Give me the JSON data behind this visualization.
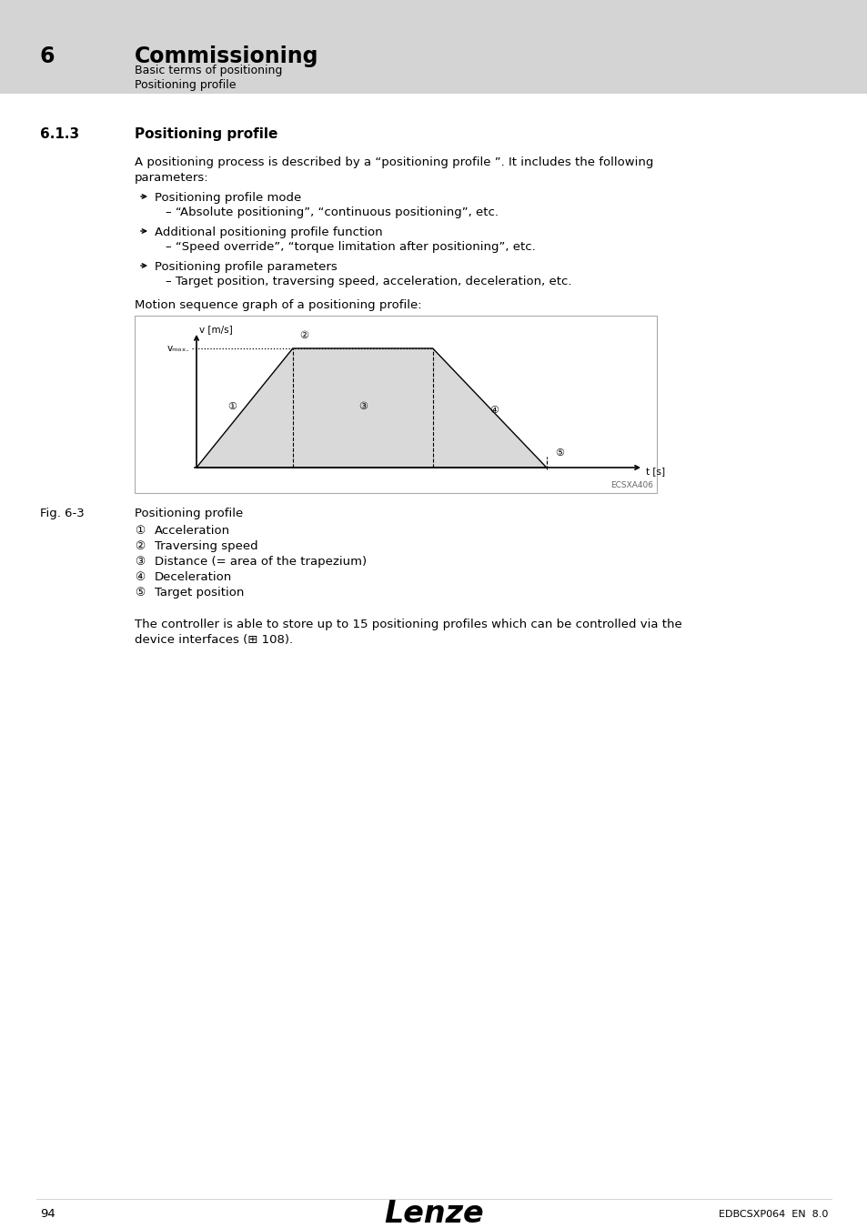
{
  "page_bg": "#ffffff",
  "header_bg": "#d4d4d4",
  "header_number": "6",
  "header_title": "Commissioning",
  "header_sub1": "Basic terms of positioning",
  "header_sub2": "Positioning profile",
  "section_number": "6.1.3",
  "section_title": "Positioning profile",
  "body_text1_line1": "A positioning process is described by a “positioning profile ”. It includes the following",
  "body_text1_line2": "parameters:",
  "bullet_items": [
    [
      "Positioning profile mode",
      "– “Absolute positioning”, “continuous positioning”, etc."
    ],
    [
      "Additional positioning profile function",
      "– “Speed override”, “torque limitation after positioning”, etc."
    ],
    [
      "Positioning profile parameters",
      "– Target position, traversing speed, acceleration, deceleration, etc."
    ]
  ],
  "graph_intro": "Motion sequence graph of a positioning profile:",
  "graph_xlabel": "t [s]",
  "graph_ylabel": "v [m/s]",
  "graph_vpos_label": "vₘₒₓ.",
  "graph_code": "ECSXA406",
  "fig_label": "Fig. 6-3",
  "fig_title": "Positioning profile",
  "legend_items": [
    [
      "①",
      "Acceleration"
    ],
    [
      "②",
      "Traversing speed"
    ],
    [
      "③",
      "Distance (= area of the trapezium)"
    ],
    [
      "④",
      "Deceleration"
    ],
    [
      "⑤",
      "Target position"
    ]
  ],
  "body_text2_line1": "The controller is able to store up to 15 positioning profiles which can be controlled via the",
  "body_text2_line2": "device interfaces (⊞ 108).",
  "footer_page": "94",
  "footer_logo": "Lenze",
  "footer_code": "EDBCSXP064  EN  8.0",
  "trapezoid_fill": "#d9d9d9",
  "trapezoid_line": "#000000",
  "graph_bg": "#ffffff",
  "graph_border": "#aaaaaa",
  "t0": 0.0,
  "t1": 0.22,
  "t2": 0.54,
  "t3": 0.8,
  "vmax": 1.0
}
